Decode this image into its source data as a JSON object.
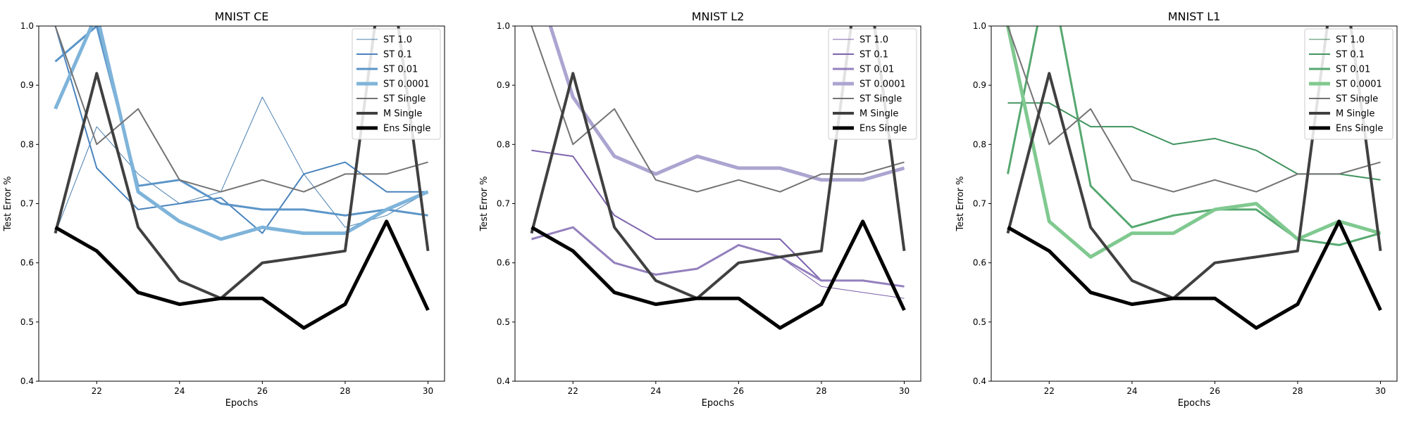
{
  "figure": {
    "ylabel": "Test Error %",
    "xlabel": "Epochs"
  },
  "chart_data": [
    {
      "type": "line",
      "title": "MNIST CE",
      "xlabel": "Epochs",
      "ylabel": "Test Error %",
      "xlim": [
        20.6,
        30.4
      ],
      "ylim": [
        0.4,
        1.0
      ],
      "xticks": [
        22,
        24,
        26,
        28,
        30
      ],
      "yticks": [
        0.4,
        0.5,
        0.6,
        0.7,
        0.8,
        0.9,
        1.0
      ],
      "grid": false,
      "legend": "top-right",
      "series": [
        {
          "name": "ST 1.0",
          "color": "#4a7fb0",
          "width": 1,
          "x": [
            21,
            22,
            23,
            24,
            25,
            26,
            27,
            28,
            29,
            30
          ],
          "y": [
            0.65,
            0.83,
            0.75,
            0.7,
            0.72,
            0.88,
            0.75,
            0.66,
            0.68,
            0.72
          ]
        },
        {
          "name": "ST 0.1",
          "color": "#4a84bd",
          "width": 2,
          "x": [
            21,
            22,
            23,
            24,
            25,
            26,
            27,
            28,
            29,
            30
          ],
          "y": [
            1.0,
            0.76,
            0.69,
            0.7,
            0.71,
            0.65,
            0.75,
            0.77,
            0.72,
            0.72
          ]
        },
        {
          "name": "ST 0.01",
          "color": "#5b95c8",
          "width": 3,
          "x": [
            21,
            22,
            23,
            24,
            25,
            26,
            27,
            28,
            29,
            30
          ],
          "y": [
            0.94,
            1.0,
            0.73,
            0.74,
            0.7,
            0.69,
            0.69,
            0.68,
            0.69,
            0.68
          ]
        },
        {
          "name": "ST 0.0001",
          "color": "#7fb4da",
          "width": 5,
          "x": [
            21,
            22,
            23,
            24,
            25,
            26,
            27,
            28,
            29,
            30
          ],
          "y": [
            0.86,
            1.02,
            0.72,
            0.67,
            0.64,
            0.66,
            0.65,
            0.65,
            0.69,
            0.72
          ]
        },
        {
          "name": "ST Single",
          "color": "#737373",
          "width": 2,
          "x": [
            21,
            22,
            23,
            24,
            25,
            26,
            27,
            28,
            29,
            30
          ],
          "y": [
            1.0,
            0.8,
            0.86,
            0.74,
            0.72,
            0.74,
            0.72,
            0.75,
            0.75,
            0.77
          ]
        },
        {
          "name": "M Single",
          "color": "#404040",
          "width": 4,
          "x": [
            21,
            22,
            23,
            24,
            25,
            26,
            27,
            28,
            29,
            30
          ],
          "y": [
            0.65,
            0.92,
            0.66,
            0.57,
            0.54,
            0.6,
            0.61,
            0.62,
            1.15,
            0.62
          ]
        },
        {
          "name": "Ens Single",
          "color": "#000000",
          "width": 5,
          "x": [
            21,
            22,
            23,
            24,
            25,
            26,
            27,
            28,
            29,
            30
          ],
          "y": [
            0.66,
            0.62,
            0.55,
            0.53,
            0.54,
            0.54,
            0.49,
            0.53,
            0.67,
            0.52
          ]
        }
      ]
    },
    {
      "type": "line",
      "title": "MNIST L2",
      "xlabel": "Epochs",
      "ylabel": "Test Error %",
      "xlim": [
        20.6,
        30.4
      ],
      "ylim": [
        0.4,
        1.0
      ],
      "xticks": [
        22,
        24,
        26,
        28,
        30
      ],
      "yticks": [
        0.4,
        0.5,
        0.6,
        0.7,
        0.8,
        0.9,
        1.0
      ],
      "grid": false,
      "legend": "top-right",
      "series": [
        {
          "name": "ST 1.0",
          "color": "#7a5ea8",
          "width": 1,
          "x": [
            21,
            22,
            23,
            24,
            25,
            26,
            27,
            28,
            29,
            30
          ],
          "y": [
            0.64,
            0.66,
            0.6,
            0.58,
            0.59,
            0.63,
            0.61,
            0.56,
            0.55,
            0.54
          ]
        },
        {
          "name": "ST 0.1",
          "color": "#7d64ac",
          "width": 2,
          "x": [
            21,
            22,
            23,
            24,
            25,
            26,
            27,
            28,
            29,
            30
          ],
          "y": [
            0.79,
            0.78,
            0.68,
            0.64,
            0.64,
            0.64,
            0.64,
            0.57,
            0.57,
            0.56
          ]
        },
        {
          "name": "ST 0.01",
          "color": "#9380bd",
          "width": 3,
          "x": [
            21,
            22,
            23,
            24,
            25,
            26,
            27,
            28,
            29,
            30
          ],
          "y": [
            0.64,
            0.66,
            0.6,
            0.58,
            0.59,
            0.63,
            0.61,
            0.57,
            0.57,
            0.56
          ]
        },
        {
          "name": "ST 0.0001",
          "color": "#aba5d1",
          "width": 5,
          "x": [
            21,
            22,
            23,
            24,
            25,
            26,
            27,
            28,
            29,
            30
          ],
          "y": [
            1.1,
            0.88,
            0.78,
            0.75,
            0.78,
            0.76,
            0.76,
            0.74,
            0.74,
            0.76
          ]
        },
        {
          "name": "ST Single",
          "color": "#737373",
          "width": 2,
          "x": [
            21,
            22,
            23,
            24,
            25,
            26,
            27,
            28,
            29,
            30
          ],
          "y": [
            1.0,
            0.8,
            0.86,
            0.74,
            0.72,
            0.74,
            0.72,
            0.75,
            0.75,
            0.77
          ]
        },
        {
          "name": "M Single",
          "color": "#404040",
          "width": 4,
          "x": [
            21,
            22,
            23,
            24,
            25,
            26,
            27,
            28,
            29,
            30
          ],
          "y": [
            0.65,
            0.92,
            0.66,
            0.57,
            0.54,
            0.6,
            0.61,
            0.62,
            1.15,
            0.62
          ]
        },
        {
          "name": "Ens Single",
          "color": "#000000",
          "width": 5,
          "x": [
            21,
            22,
            23,
            24,
            25,
            26,
            27,
            28,
            29,
            30
          ],
          "y": [
            0.66,
            0.62,
            0.55,
            0.53,
            0.54,
            0.54,
            0.49,
            0.53,
            0.67,
            0.52
          ]
        }
      ]
    },
    {
      "type": "line",
      "title": "MNIST L1",
      "xlabel": "Epochs",
      "ylabel": "Test Error %",
      "xlim": [
        20.6,
        30.4
      ],
      "ylim": [
        0.4,
        1.0
      ],
      "xticks": [
        22,
        24,
        26,
        28,
        30
      ],
      "yticks": [
        0.4,
        0.5,
        0.6,
        0.7,
        0.8,
        0.9,
        1.0
      ],
      "grid": false,
      "legend": "top-right",
      "series": [
        {
          "name": "ST 1.0",
          "color": "#3e8a5a",
          "width": 1,
          "x": [
            21,
            22,
            23,
            24,
            25,
            26,
            27,
            28,
            29,
            30
          ],
          "y": [
            0.87,
            0.87,
            0.83,
            0.83,
            0.8,
            0.81,
            0.79,
            0.75,
            0.75,
            0.74
          ]
        },
        {
          "name": "ST 0.1",
          "color": "#41945f",
          "width": 2,
          "x": [
            21,
            22,
            23,
            24,
            25,
            26,
            27,
            28,
            29,
            30
          ],
          "y": [
            0.87,
            0.87,
            0.83,
            0.83,
            0.8,
            0.81,
            0.79,
            0.75,
            0.75,
            0.74
          ]
        },
        {
          "name": "ST 0.01",
          "color": "#56a870",
          "width": 3,
          "x": [
            21,
            22,
            23,
            24,
            25,
            26,
            27,
            28,
            29,
            30
          ],
          "y": [
            0.75,
            1.1,
            0.73,
            0.66,
            0.68,
            0.69,
            0.69,
            0.64,
            0.63,
            0.65
          ]
        },
        {
          "name": "ST 0.0001",
          "color": "#80c990",
          "width": 5,
          "x": [
            21,
            22,
            23,
            24,
            25,
            26,
            27,
            28,
            29,
            30
          ],
          "y": [
            1.0,
            0.67,
            0.61,
            0.65,
            0.65,
            0.69,
            0.7,
            0.64,
            0.67,
            0.65
          ]
        },
        {
          "name": "ST Single",
          "color": "#737373",
          "width": 2,
          "x": [
            21,
            22,
            23,
            24,
            25,
            26,
            27,
            28,
            29,
            30
          ],
          "y": [
            1.0,
            0.8,
            0.86,
            0.74,
            0.72,
            0.74,
            0.72,
            0.75,
            0.75,
            0.77
          ]
        },
        {
          "name": "M Single",
          "color": "#404040",
          "width": 4,
          "x": [
            21,
            22,
            23,
            24,
            25,
            26,
            27,
            28,
            29,
            30
          ],
          "y": [
            0.65,
            0.92,
            0.66,
            0.57,
            0.54,
            0.6,
            0.61,
            0.62,
            1.15,
            0.62
          ]
        },
        {
          "name": "Ens Single",
          "color": "#000000",
          "width": 5,
          "x": [
            21,
            22,
            23,
            24,
            25,
            26,
            27,
            28,
            29,
            30
          ],
          "y": [
            0.66,
            0.62,
            0.55,
            0.53,
            0.54,
            0.54,
            0.49,
            0.53,
            0.67,
            0.52
          ]
        }
      ]
    }
  ]
}
